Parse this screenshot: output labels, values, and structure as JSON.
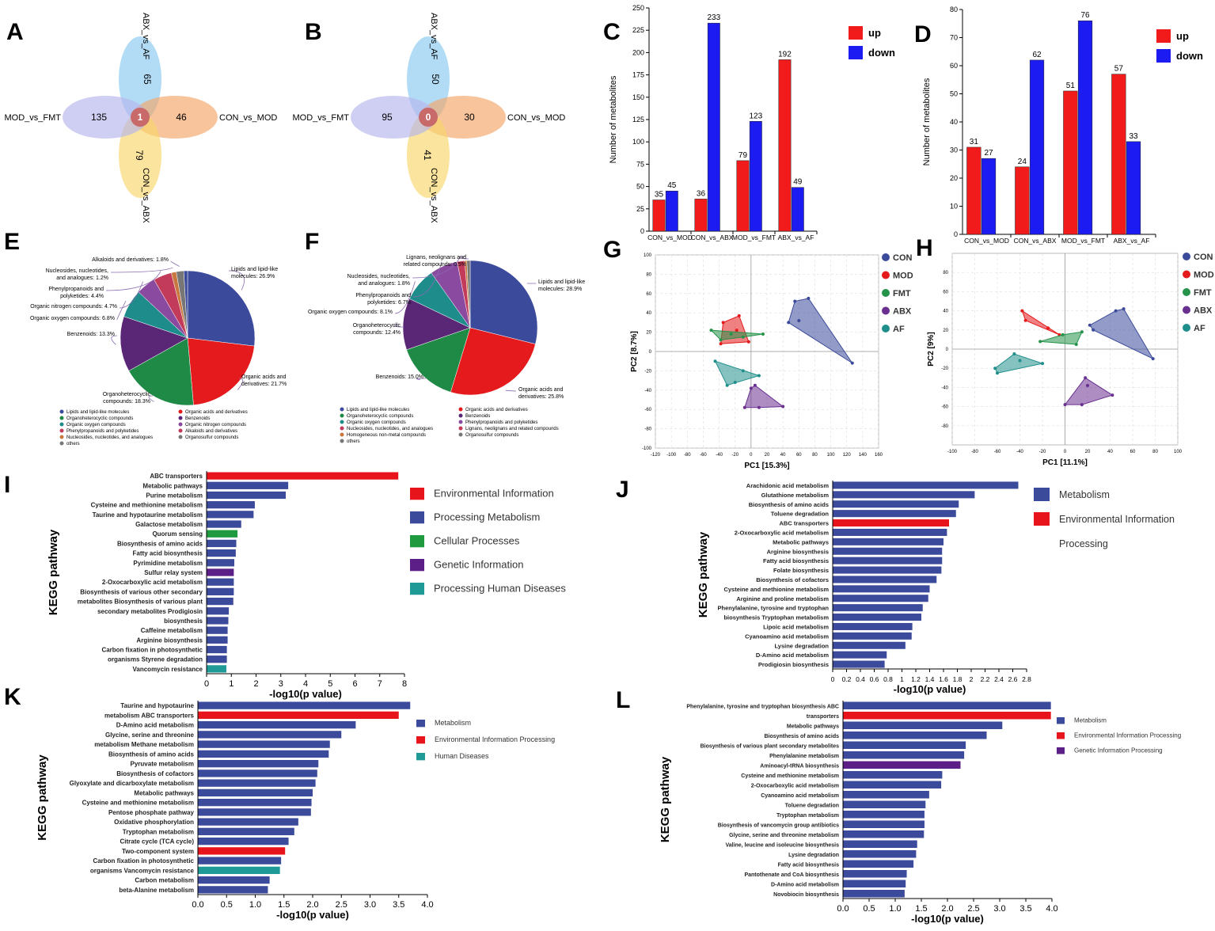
{
  "palette": {
    "red": "#f21b1b",
    "blue": "#1b1bf2",
    "navy": "#3b4a9a",
    "kred": "#e8141c",
    "kgreen": "#1f9a3f",
    "kpurple": "#5b1f87",
    "kteal": "#1f9a96",
    "venn": [
      "#89c9f0",
      "#f5a467",
      "#f7d56a",
      "#b5b6ec"
    ],
    "pie": [
      "#3b4a9a",
      "#e41a1c",
      "#1e8a46",
      "#5a2777",
      "#1e8c8a",
      "#8a4a9f",
      "#c33b5a",
      "#c8783f",
      "#777777"
    ],
    "pca": {
      "CON": "#3b4a9a",
      "MOD": "#e41a1c",
      "FMT": "#25934a",
      "ABX": "#6a3090",
      "AF": "#208f8c"
    }
  },
  "panels": {
    "A": {
      "letter": "A",
      "sets": [
        "ABX_vs_AF",
        "CON_vs_MOD",
        "CON_vs_ABX",
        "MOD_vs_FMT"
      ],
      "counts": [
        "65",
        "46",
        "79",
        "135"
      ],
      "center": "1"
    },
    "B": {
      "letter": "B",
      "sets": [
        "ABX_vs_AF",
        "CON_vs_MOD",
        "CON_vs_ABX",
        "MOD_vs_FMT"
      ],
      "counts": [
        "50",
        "30",
        "41",
        "95"
      ],
      "center": "0"
    },
    "E": {
      "letter": "E",
      "legend": [
        "Lipids and lipid-like molecules",
        "Organic acids and derivatives",
        "Organoheterocyclic compounds",
        "Benzenoids",
        "Organic oxygen compounds",
        "Organic nitrogen compounds",
        "Phenylpropanoids and polyketides",
        "Alkaloids and derivatives",
        "Nucleosides, nucleotides, and analogues",
        "Organosulfur compounds",
        "others"
      ]
    },
    "F": {
      "letter": "F",
      "legend": [
        "Lipids and lipid-like molecules",
        "Organic acids and derivatives",
        "Organoheterocyclic compounds",
        "Benzenoids",
        "Organic oxygen compounds",
        "Phenylpropanoids and polyketides",
        "Nucleosides, nucleotides, and analogues",
        "Lignans, neolignans and related compounds",
        "Homogeneous non-metal compounds",
        "Organosulfur compounds",
        "others"
      ]
    },
    "I": {
      "letter": "I",
      "legend": [
        "Environmental Information",
        "Processing Metabolism",
        "Cellular Processes",
        "Genetic Information",
        "Processing Human Diseases"
      ]
    },
    "J": {
      "letter": "J",
      "legend": [
        "Metabolism",
        "Environmental Information",
        "Processing"
      ]
    },
    "K": {
      "letter": "K",
      "legend": [
        "Metabolism",
        "Environmental Information Processing",
        "Human Diseases"
      ]
    },
    "L": {
      "letter": "L",
      "legend": [
        "Metabolism",
        "Environmental Information Processing",
        "Genetic Information Processing"
      ]
    }
  },
  "chart_data": [
    {
      "id": "C",
      "type": "bar",
      "title": "",
      "ylabel": "Number of metabolites",
      "categories": [
        "CON_vs_MOD",
        "CON_vs_ABX",
        "MOD_vs_FMT",
        "ABX_vs_AF"
      ],
      "series": [
        {
          "name": "up",
          "values": [
            35,
            36,
            79,
            192
          ]
        },
        {
          "name": "down",
          "values": [
            45,
            233,
            123,
            49
          ]
        }
      ],
      "ylim": [
        0,
        250
      ],
      "yticks": [
        0,
        25,
        50,
        75,
        100,
        125,
        150,
        175,
        200,
        225,
        250
      ]
    },
    {
      "id": "D",
      "type": "bar",
      "title": "",
      "ylabel": "Number of metabolites",
      "categories": [
        "CON_vs_MOD",
        "CON_vs_ABX",
        "MOD_vs_FMT",
        "ABX_vs_AF"
      ],
      "series": [
        {
          "name": "up",
          "values": [
            31,
            24,
            51,
            57
          ]
        },
        {
          "name": "down",
          "values": [
            27,
            62,
            76,
            33
          ]
        }
      ],
      "ylim": [
        0,
        80
      ],
      "yticks": [
        0,
        10,
        20,
        30,
        40,
        50,
        60,
        70,
        80
      ]
    },
    {
      "id": "E",
      "type": "pie",
      "slices": [
        {
          "label": "Lipids and lipid-like molecules: 26.9%",
          "value": 26.9
        },
        {
          "label": "Organic acids and derivatives: 21.7%",
          "value": 21.7
        },
        {
          "label": "Organoheterocyclic compounds: 18.3%",
          "value": 18.3
        },
        {
          "label": "Benzenoids: 13.3%",
          "value": 13.3
        },
        {
          "label": "Organic oxygen compounds: 6.8%",
          "value": 6.8
        },
        {
          "label": "Organic nitrogen compounds: 4.7%",
          "value": 4.7
        },
        {
          "label": "Phenylpropanoids and polyketides: 4.4%",
          "value": 4.4
        },
        {
          "label": "Nucleosides, nucleotides, and analogues: 1.2%",
          "value": 1.2
        },
        {
          "label": "Alkaloids and derivatives: 1.8%",
          "value": 1.8
        },
        {
          "label": "",
          "value": 0.9
        }
      ]
    },
    {
      "id": "F",
      "type": "pie",
      "slices": [
        {
          "label": "Lipids and lipid-like molecules: 28.9%",
          "value": 28.9
        },
        {
          "label": "Organic acids and derivatives: 25.8%",
          "value": 25.8
        },
        {
          "label": "Benzenoids: 15.0%",
          "value": 15.0
        },
        {
          "label": "Organoheterocyclic compounds: 12.4%",
          "value": 12.4
        },
        {
          "label": "Organic oxygen compounds: 8.1%",
          "value": 8.1
        },
        {
          "label": "Phenylpropanoids and polyketides: 6.7%",
          "value": 6.7
        },
        {
          "label": "Nucleosides, nucleotides, and analogues: 1.8%",
          "value": 1.8
        },
        {
          "label": "Lignans, neolignans and related compounds: 0.5%",
          "value": 0.5
        },
        {
          "label": "",
          "value": 0.8
        }
      ]
    },
    {
      "id": "G",
      "type": "scatter",
      "xlabel": "PC1 [15.3%]",
      "ylabel": "PC2 [8.7%]",
      "xlim": [
        -120,
        160
      ],
      "ylim": [
        -100,
        100
      ],
      "xticks": [
        -120,
        -100,
        -80,
        -60,
        -40,
        -20,
        0,
        20,
        40,
        60,
        80,
        100,
        120,
        140,
        160
      ],
      "yticks": [
        -100,
        -80,
        -60,
        -40,
        -20,
        0,
        20,
        40,
        60,
        80,
        100
      ],
      "groups": [
        {
          "name": "CON",
          "points": [
            [
              55,
              52
            ],
            [
              72,
              55
            ],
            [
              127,
              -12
            ],
            [
              60,
              32
            ],
            [
              47,
              30
            ]
          ]
        },
        {
          "name": "MOD",
          "points": [
            [
              -38,
              8
            ],
            [
              -35,
              30
            ],
            [
              -15,
              37
            ],
            [
              -3,
              10
            ],
            [
              -18,
              22
            ]
          ]
        },
        {
          "name": "FMT",
          "points": [
            [
              -50,
              22
            ],
            [
              -38,
              12
            ],
            [
              15,
              18
            ],
            [
              -10,
              15
            ],
            [
              -25,
              18
            ]
          ]
        },
        {
          "name": "ABX",
          "points": [
            [
              -8,
              -58
            ],
            [
              5,
              -35
            ],
            [
              40,
              -57
            ],
            [
              10,
              -58
            ],
            [
              0,
              -38
            ]
          ]
        },
        {
          "name": "AF",
          "points": [
            [
              -45,
              -10
            ],
            [
              -30,
              -35
            ],
            [
              10,
              -25
            ],
            [
              -10,
              -20
            ],
            [
              -20,
              -32
            ]
          ]
        }
      ]
    },
    {
      "id": "H",
      "type": "scatter",
      "xlabel": "PC1 [11.1%]",
      "ylabel": "PC2 [9%]",
      "xlim": [
        -100,
        100
      ],
      "ylim": [
        -100,
        100
      ],
      "xticks": [
        -100,
        -80,
        -60,
        -40,
        -20,
        0,
        20,
        40,
        60,
        80,
        100
      ],
      "yticks": [
        -80,
        -60,
        -40,
        -20,
        0,
        20,
        40,
        60,
        80
      ],
      "groups": [
        {
          "name": "CON",
          "points": [
            [
              22,
              25
            ],
            [
              45,
              40
            ],
            [
              52,
              42
            ],
            [
              78,
              -10
            ],
            [
              25,
              20
            ]
          ]
        },
        {
          "name": "MOD",
          "points": [
            [
              -38,
              40
            ],
            [
              -15,
              22
            ],
            [
              -5,
              15
            ],
            [
              -35,
              30
            ]
          ]
        },
        {
          "name": "FMT",
          "points": [
            [
              -22,
              8
            ],
            [
              15,
              18
            ],
            [
              10,
              5
            ],
            [
              -2,
              15
            ]
          ]
        },
        {
          "name": "ABX",
          "points": [
            [
              0,
              -58
            ],
            [
              18,
              -30
            ],
            [
              42,
              -48
            ],
            [
              15,
              -58
            ],
            [
              20,
              -38
            ]
          ]
        },
        {
          "name": "AF",
          "points": [
            [
              -62,
              -20
            ],
            [
              -45,
              -5
            ],
            [
              -20,
              -15
            ],
            [
              -60,
              -25
            ],
            [
              -40,
              -12
            ]
          ]
        }
      ]
    },
    {
      "id": "I",
      "type": "bar",
      "orientation": "horizontal",
      "ylabel": "KEGG pathway",
      "xlabel": "-log10(p value)",
      "xlim": [
        0,
        8
      ],
      "xticks": [
        0,
        1,
        2,
        3,
        4,
        5,
        6,
        7,
        8
      ],
      "categories": [
        "ABC transporters",
        "Metabolic pathways",
        "Purine metabolism",
        "Cysteine and methionine metabolism",
        "Taurine and hypotaurine metabolism",
        "Galactose metabolism",
        "Quorum sensing",
        "Biosynthesis of amino acids",
        "Fatty acid biosynthesis",
        "Pyrimidine metabolism",
        "Sulfur relay system",
        "2-Oxocarboxylic acid metabolism",
        "Biosynthesis of various other secondary",
        "metabolites Biosynthesis of various plant",
        "secondary metabolites Prodigiosin",
        "biosynthesis",
        "Caffeine metabolism",
        "Arginine biosynthesis",
        "Carbon fixation in photosynthetic",
        "organisms Styrene degradation",
        "Vancomycin resistance"
      ],
      "values": [
        7.75,
        3.3,
        3.2,
        1.95,
        1.9,
        1.4,
        1.25,
        1.2,
        1.18,
        1.12,
        1.1,
        1.1,
        1.1,
        1.08,
        0.9,
        0.88,
        0.85,
        0.85,
        0.82,
        0.82,
        0.8
      ],
      "groups": [
        "env",
        "met",
        "met",
        "met",
        "met",
        "met",
        "cell",
        "met",
        "met",
        "met",
        "gen",
        "met",
        "met",
        "met",
        "met",
        "met",
        "met",
        "met",
        "met",
        "met",
        "hum"
      ]
    },
    {
      "id": "J",
      "type": "bar",
      "orientation": "horizontal",
      "ylabel": "KEGG pathway",
      "xlabel": "-log10(p value)",
      "xlim": [
        0,
        2.8
      ],
      "xticks": [
        0,
        0.2,
        0.4,
        0.6,
        0.8,
        1.0,
        1.2,
        1.4,
        1.6,
        1.8,
        2.0,
        2.2,
        2.4,
        2.6,
        2.8
      ],
      "categories": [
        "Arachidonic acid metabolism",
        "Glutathione metabolism",
        "Biosynthesis of amino acids",
        "Toluene degradation",
        "ABC transporters",
        "2-Oxocarboxylic acid metabolism",
        "Metabolic pathways",
        "Arginine biosynthesis",
        "Fatty acid biosynthesis",
        "Folate biosynthesis",
        "Biosynthesis of cofactors",
        "Cysteine and methionine metabolism",
        "Arginine and proline metabolism",
        "Phenylalanine, tyrosine and tryptophan",
        "biosynthesis Tryptophan metabolism",
        "Lipoic acid metabolism",
        "Cyanoamino acid metabolism",
        "Lysine degradation",
        "D-Amino acid metabolism",
        "Prodigiosin biosynthesis"
      ],
      "values": [
        2.68,
        2.05,
        1.82,
        1.78,
        1.68,
        1.65,
        1.6,
        1.58,
        1.58,
        1.57,
        1.5,
        1.4,
        1.38,
        1.3,
        1.28,
        1.15,
        1.14,
        1.05,
        0.78,
        0.75
      ],
      "groups": [
        "met",
        "met",
        "met",
        "met",
        "env",
        "met",
        "met",
        "met",
        "met",
        "met",
        "met",
        "met",
        "met",
        "met",
        "met",
        "met",
        "met",
        "met",
        "met",
        "met"
      ]
    },
    {
      "id": "K",
      "type": "bar",
      "orientation": "horizontal",
      "ylabel": "KEGG pathway",
      "xlabel": "-log10(p value)",
      "xlim": [
        0,
        4.0
      ],
      "xticks": [
        "0.0",
        "0.5",
        "1.0",
        "1.5",
        "2.0",
        "2.5",
        "3.0",
        "3.5",
        "4.0"
      ],
      "categories": [
        "Taurine and hypotaurine",
        "metabolism ABC transporters",
        "D-Amino acid metabolism",
        "Glycine, serine and threonine",
        "metabolism Methane metabolism",
        "Biosynthesis of amino acids",
        "Pyruvate metabolism",
        "Biosynthesis of cofactors",
        "Glyoxylate and dicarboxylate metabolism",
        "Metabolic pathways",
        "Cysteine and methionine metabolism",
        "Pentose phosphate pathway",
        "Oxidative phosphorylation",
        "Tryptophan metabolism",
        "Citrate cycle (TCA cycle)",
        "Two-component system",
        "Carbon fixation in photosynthetic",
        "organisms Vancomycin resistance",
        "Carbon metabolism",
        "beta-Alanine metabolism"
      ],
      "values": [
        3.7,
        3.5,
        2.75,
        2.5,
        2.3,
        2.28,
        2.1,
        2.08,
        2.05,
        2.0,
        1.98,
        1.97,
        1.75,
        1.68,
        1.58,
        1.52,
        1.45,
        1.43,
        1.25,
        1.22
      ],
      "groups": [
        "met",
        "env",
        "met",
        "met",
        "met",
        "met",
        "met",
        "met",
        "met",
        "met",
        "met",
        "met",
        "met",
        "met",
        "met",
        "env",
        "met",
        "hum",
        "met",
        "met"
      ]
    },
    {
      "id": "L",
      "type": "bar",
      "orientation": "horizontal",
      "ylabel": "KEGG pathway",
      "xlabel": "-log10(p value)",
      "xlim": [
        0,
        4.0
      ],
      "xticks": [
        "0.0",
        "0.5",
        "1.0",
        "1.5",
        "2.0",
        "2.5",
        "3.0",
        "3.5",
        "4.0"
      ],
      "categories": [
        "Phenylalanine, tyrosine and tryptophan biosynthesis ABC",
        "transporters",
        "Metabolic pathways",
        "Biosynthesis of amino acids",
        "Biosynthesis of various plant secondary metabolites",
        "Phenylalanine metabolism",
        "Aminoacyl-tRNA biosynthesis",
        "Cysteine and methionine metabolism",
        "2-Oxocarboxylic acid metabolism",
        "Cyanoamino acid metabolism",
        "Toluene degradation",
        "Tryptophan metabolism",
        "Biosynthesis of vancomycin group antibiotics",
        "Glycine, serine and threonine metabolism",
        "Valine, leucine and isoleucine biosynthesis",
        "Lysine degradation",
        "Fatty acid biosynthesis",
        "Pantothenate and CoA biosynthesis",
        "D-Amino acid metabolism",
        "Novobiocin biosynthesis"
      ],
      "values": [
        3.98,
        3.98,
        3.05,
        2.75,
        2.35,
        2.32,
        2.25,
        1.9,
        1.88,
        1.65,
        1.58,
        1.56,
        1.56,
        1.55,
        1.42,
        1.4,
        1.35,
        1.22,
        1.2,
        1.18
      ],
      "groups": [
        "met",
        "env",
        "met",
        "met",
        "met",
        "met",
        "gen",
        "met",
        "met",
        "met",
        "met",
        "met",
        "met",
        "met",
        "met",
        "met",
        "met",
        "met",
        "met",
        "met"
      ]
    }
  ],
  "letters": {
    "C": "C",
    "D": "D",
    "G": "G",
    "H": "H"
  }
}
